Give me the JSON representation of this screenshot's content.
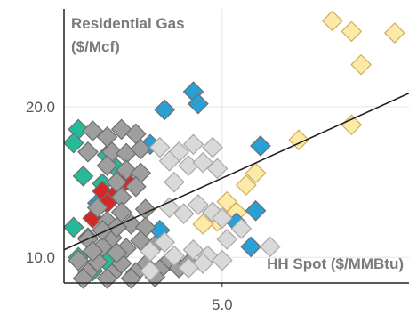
{
  "chart_data": {
    "type": "scatter",
    "title": "",
    "ylabel_line1": "Residential Gas",
    "ylabel_line2": "($/Mcf)",
    "xlabel": "HH Spot ($/MMBtu)",
    "xlim": [
      1.7,
      8.9
    ],
    "ylim": [
      8.3,
      26.5
    ],
    "x_ticks": [
      {
        "value": 5.0,
        "label": "5.0"
      }
    ],
    "y_ticks": [
      {
        "value": 10.0,
        "label": "10.0"
      },
      {
        "value": 20.0,
        "label": "20.0"
      }
    ],
    "grid": true,
    "legend": "none",
    "trendline": {
      "x": [
        1.7,
        8.9
      ],
      "y": [
        10.5,
        20.9
      ]
    },
    "colors": {
      "gray": "#9e9e9e",
      "light_gray": "#d9d9d9",
      "teal": "#26b99a",
      "blue": "#2a9fd6",
      "red": "#d62728",
      "yellow": "#fde9a8",
      "trendline": "#222222",
      "axis": "#222222",
      "grid": "#e6e6e6"
    },
    "series": [
      {
        "color_key": "yellow",
        "points": [
          [
            7.3,
            25.7
          ],
          [
            7.7,
            25.0
          ],
          [
            8.6,
            24.9
          ],
          [
            7.9,
            22.8
          ],
          [
            7.7,
            18.8
          ],
          [
            6.6,
            17.8
          ],
          [
            5.7,
            15.6
          ],
          [
            5.5,
            14.8
          ],
          [
            5.1,
            13.7
          ],
          [
            5.3,
            13.0
          ],
          [
            4.9,
            12.4
          ],
          [
            4.6,
            12.2
          ]
        ]
      },
      {
        "color_key": "blue",
        "points": [
          [
            4.4,
            21.0
          ],
          [
            4.5,
            20.2
          ],
          [
            3.8,
            19.8
          ],
          [
            5.8,
            17.4
          ],
          [
            3.5,
            17.5
          ],
          [
            4.8,
            13.0
          ],
          [
            5.7,
            13.1
          ],
          [
            5.3,
            12.3
          ],
          [
            3.7,
            11.8
          ],
          [
            5.6,
            10.7
          ],
          [
            2.4,
            13.6
          ]
        ]
      },
      {
        "color_key": "teal",
        "points": [
          [
            2.0,
            18.5
          ],
          [
            1.9,
            17.6
          ],
          [
            2.6,
            16.8
          ],
          [
            2.1,
            15.4
          ],
          [
            2.5,
            14.9
          ],
          [
            2.8,
            15.9
          ],
          [
            1.9,
            12.0
          ],
          [
            2.2,
            11.3
          ],
          [
            2.0,
            10.0
          ],
          [
            2.3,
            9.1
          ],
          [
            2.6,
            9.7
          ]
        ]
      },
      {
        "color_key": "red",
        "points": [
          [
            2.5,
            14.4
          ],
          [
            2.6,
            13.6
          ],
          [
            2.3,
            12.6
          ],
          [
            3.0,
            15.1
          ],
          [
            2.8,
            14.3
          ]
        ]
      },
      {
        "color_key": "gray",
        "points": [
          [
            2.3,
            18.4
          ],
          [
            2.6,
            18.0
          ],
          [
            2.9,
            18.5
          ],
          [
            3.2,
            18.2
          ],
          [
            2.2,
            17.0
          ],
          [
            2.7,
            17.0
          ],
          [
            3.0,
            16.9
          ],
          [
            3.3,
            17.2
          ],
          [
            2.6,
            16.1
          ],
          [
            3.0,
            15.8
          ],
          [
            3.3,
            15.6
          ],
          [
            2.8,
            15.0
          ],
          [
            3.2,
            14.7
          ],
          [
            2.9,
            14.0
          ],
          [
            2.4,
            13.3
          ],
          [
            3.4,
            13.2
          ],
          [
            2.6,
            12.4
          ],
          [
            3.1,
            12.2
          ],
          [
            3.4,
            12.0
          ],
          [
            2.2,
            11.2
          ],
          [
            2.7,
            11.3
          ],
          [
            3.3,
            11.1
          ],
          [
            2.5,
            10.7
          ],
          [
            3.0,
            10.6
          ],
          [
            3.6,
            10.8
          ],
          [
            2.0,
            9.8
          ],
          [
            2.4,
            9.7
          ],
          [
            2.9,
            9.6
          ],
          [
            3.4,
            9.5
          ],
          [
            3.9,
            9.8
          ],
          [
            2.2,
            9.0
          ],
          [
            2.7,
            8.9
          ],
          [
            3.2,
            9.0
          ],
          [
            3.7,
            9.2
          ],
          [
            2.1,
            8.6
          ],
          [
            2.6,
            8.6
          ],
          [
            3.1,
            8.6
          ],
          [
            3.6,
            8.7
          ],
          [
            4.1,
            9.3
          ],
          [
            4.3,
            9.6
          ],
          [
            2.8,
            10.3
          ],
          [
            2.3,
            10.4
          ],
          [
            2.8,
            12.0
          ],
          [
            2.5,
            11.8
          ],
          [
            2.9,
            13.0
          ]
        ]
      },
      {
        "color_key": "light_gray",
        "points": [
          [
            3.7,
            17.3
          ],
          [
            4.1,
            17.0
          ],
          [
            4.4,
            17.5
          ],
          [
            4.8,
            17.3
          ],
          [
            3.9,
            16.4
          ],
          [
            4.3,
            16.1
          ],
          [
            4.6,
            16.3
          ],
          [
            4.9,
            15.9
          ],
          [
            4.0,
            15.0
          ],
          [
            4.2,
            12.9
          ],
          [
            3.9,
            13.3
          ],
          [
            4.5,
            13.5
          ],
          [
            4.8,
            13.0
          ],
          [
            5.0,
            12.6
          ],
          [
            5.4,
            11.9
          ],
          [
            5.1,
            11.2
          ],
          [
            3.8,
            11.0
          ],
          [
            3.5,
            10.4
          ],
          [
            4.0,
            10.1
          ],
          [
            4.4,
            10.5
          ],
          [
            4.7,
            10.1
          ],
          [
            6.0,
            10.7
          ],
          [
            4.6,
            9.6
          ],
          [
            5.0,
            9.8
          ],
          [
            4.3,
            9.3
          ],
          [
            3.5,
            9.1
          ]
        ]
      }
    ]
  }
}
